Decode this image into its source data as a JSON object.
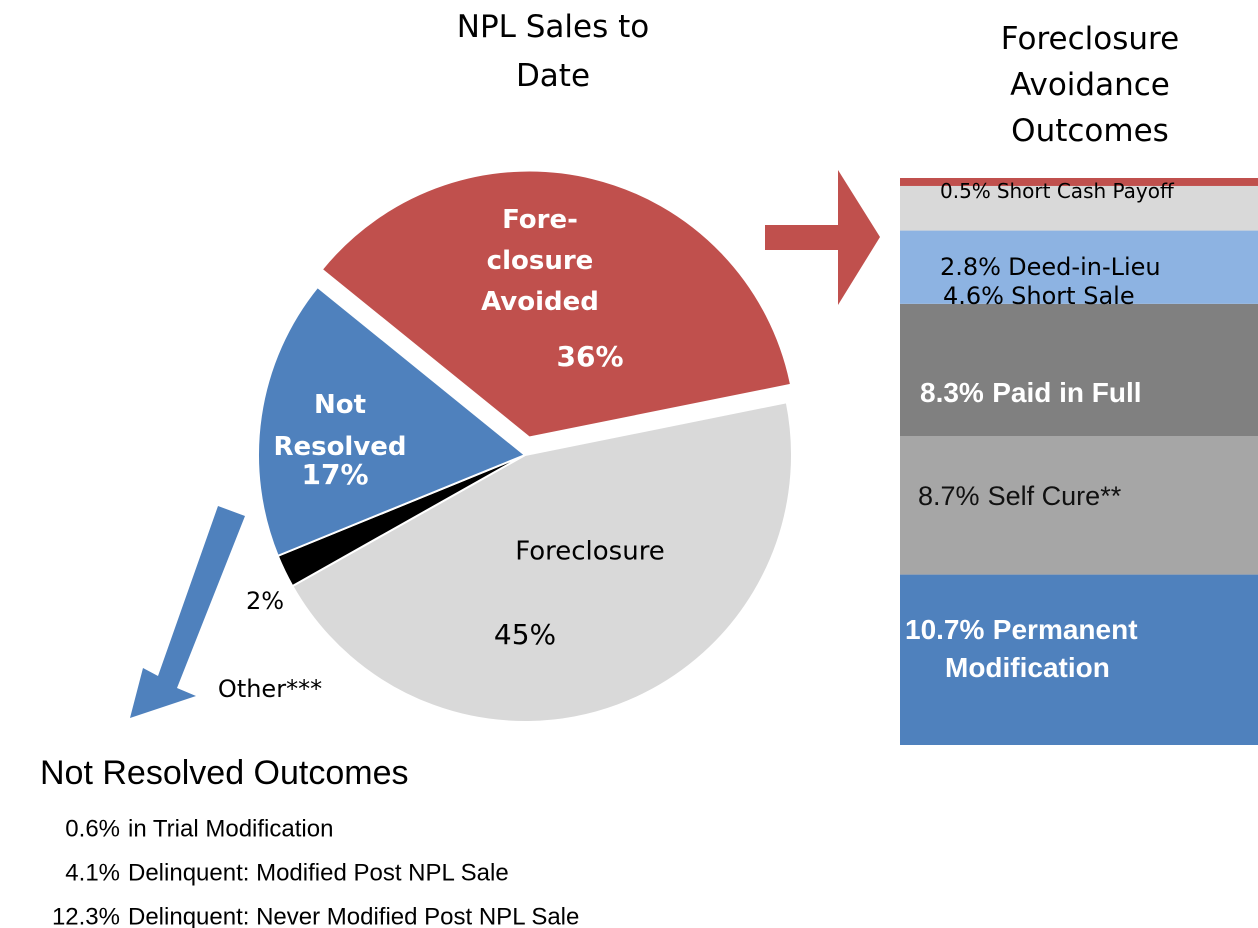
{
  "chart_data": [
    {
      "type": "pie",
      "title": "NPL Sales to\nDate",
      "categories": [
        "Fore-\nclosure\nAvoided",
        "Foreclosure",
        "Other***",
        "Not\nResolved"
      ],
      "values": [
        36,
        45,
        2,
        17
      ],
      "value_labels": [
        "36%",
        "45%",
        "2%",
        "17%"
      ],
      "colors": [
        "#c0504d",
        "#d9d9d9",
        "#000000",
        "#4f81bd"
      ],
      "explode": [
        true,
        false,
        false,
        false
      ]
    },
    {
      "type": "stacked_bar",
      "title": "Foreclosure\nAvoidance\nOutcomes",
      "series": [
        {
          "name": "Permanent\nModification",
          "color": "#4f81bd",
          "values": [
            10.7
          ],
          "value_labels": [
            "10.7%"
          ]
        },
        {
          "name": "Self Cure**",
          "color": "#a6a6a6",
          "values": [
            8.7
          ],
          "value_labels": [
            "8.7%"
          ]
        },
        {
          "name": "Paid in Full",
          "color": "#808080",
          "values": [
            8.3
          ],
          "value_labels": [
            "8.3%"
          ]
        },
        {
          "name": "Short Sale",
          "color": "#8db3e2",
          "values": [
            4.6
          ],
          "value_labels": [
            "4.6%"
          ]
        },
        {
          "name": "Deed-in-Lieu",
          "color": "#d9d9d9",
          "values": [
            2.8
          ],
          "value_labels": [
            "2.8%"
          ]
        },
        {
          "name": "Short Cash Payoff",
          "color": "#c0504d",
          "values": [
            0.5
          ],
          "value_labels": [
            "0.5%"
          ]
        }
      ]
    }
  ],
  "notes": {
    "title": "Not Resolved Outcomes",
    "items": [
      [
        "0.6%",
        "in Trial Modification"
      ],
      [
        "4.1%",
        "Delinquent: Modified Post NPL Sale"
      ],
      [
        "12.3%",
        "Delinquent: Never Modified Post NPL Sale"
      ]
    ]
  }
}
